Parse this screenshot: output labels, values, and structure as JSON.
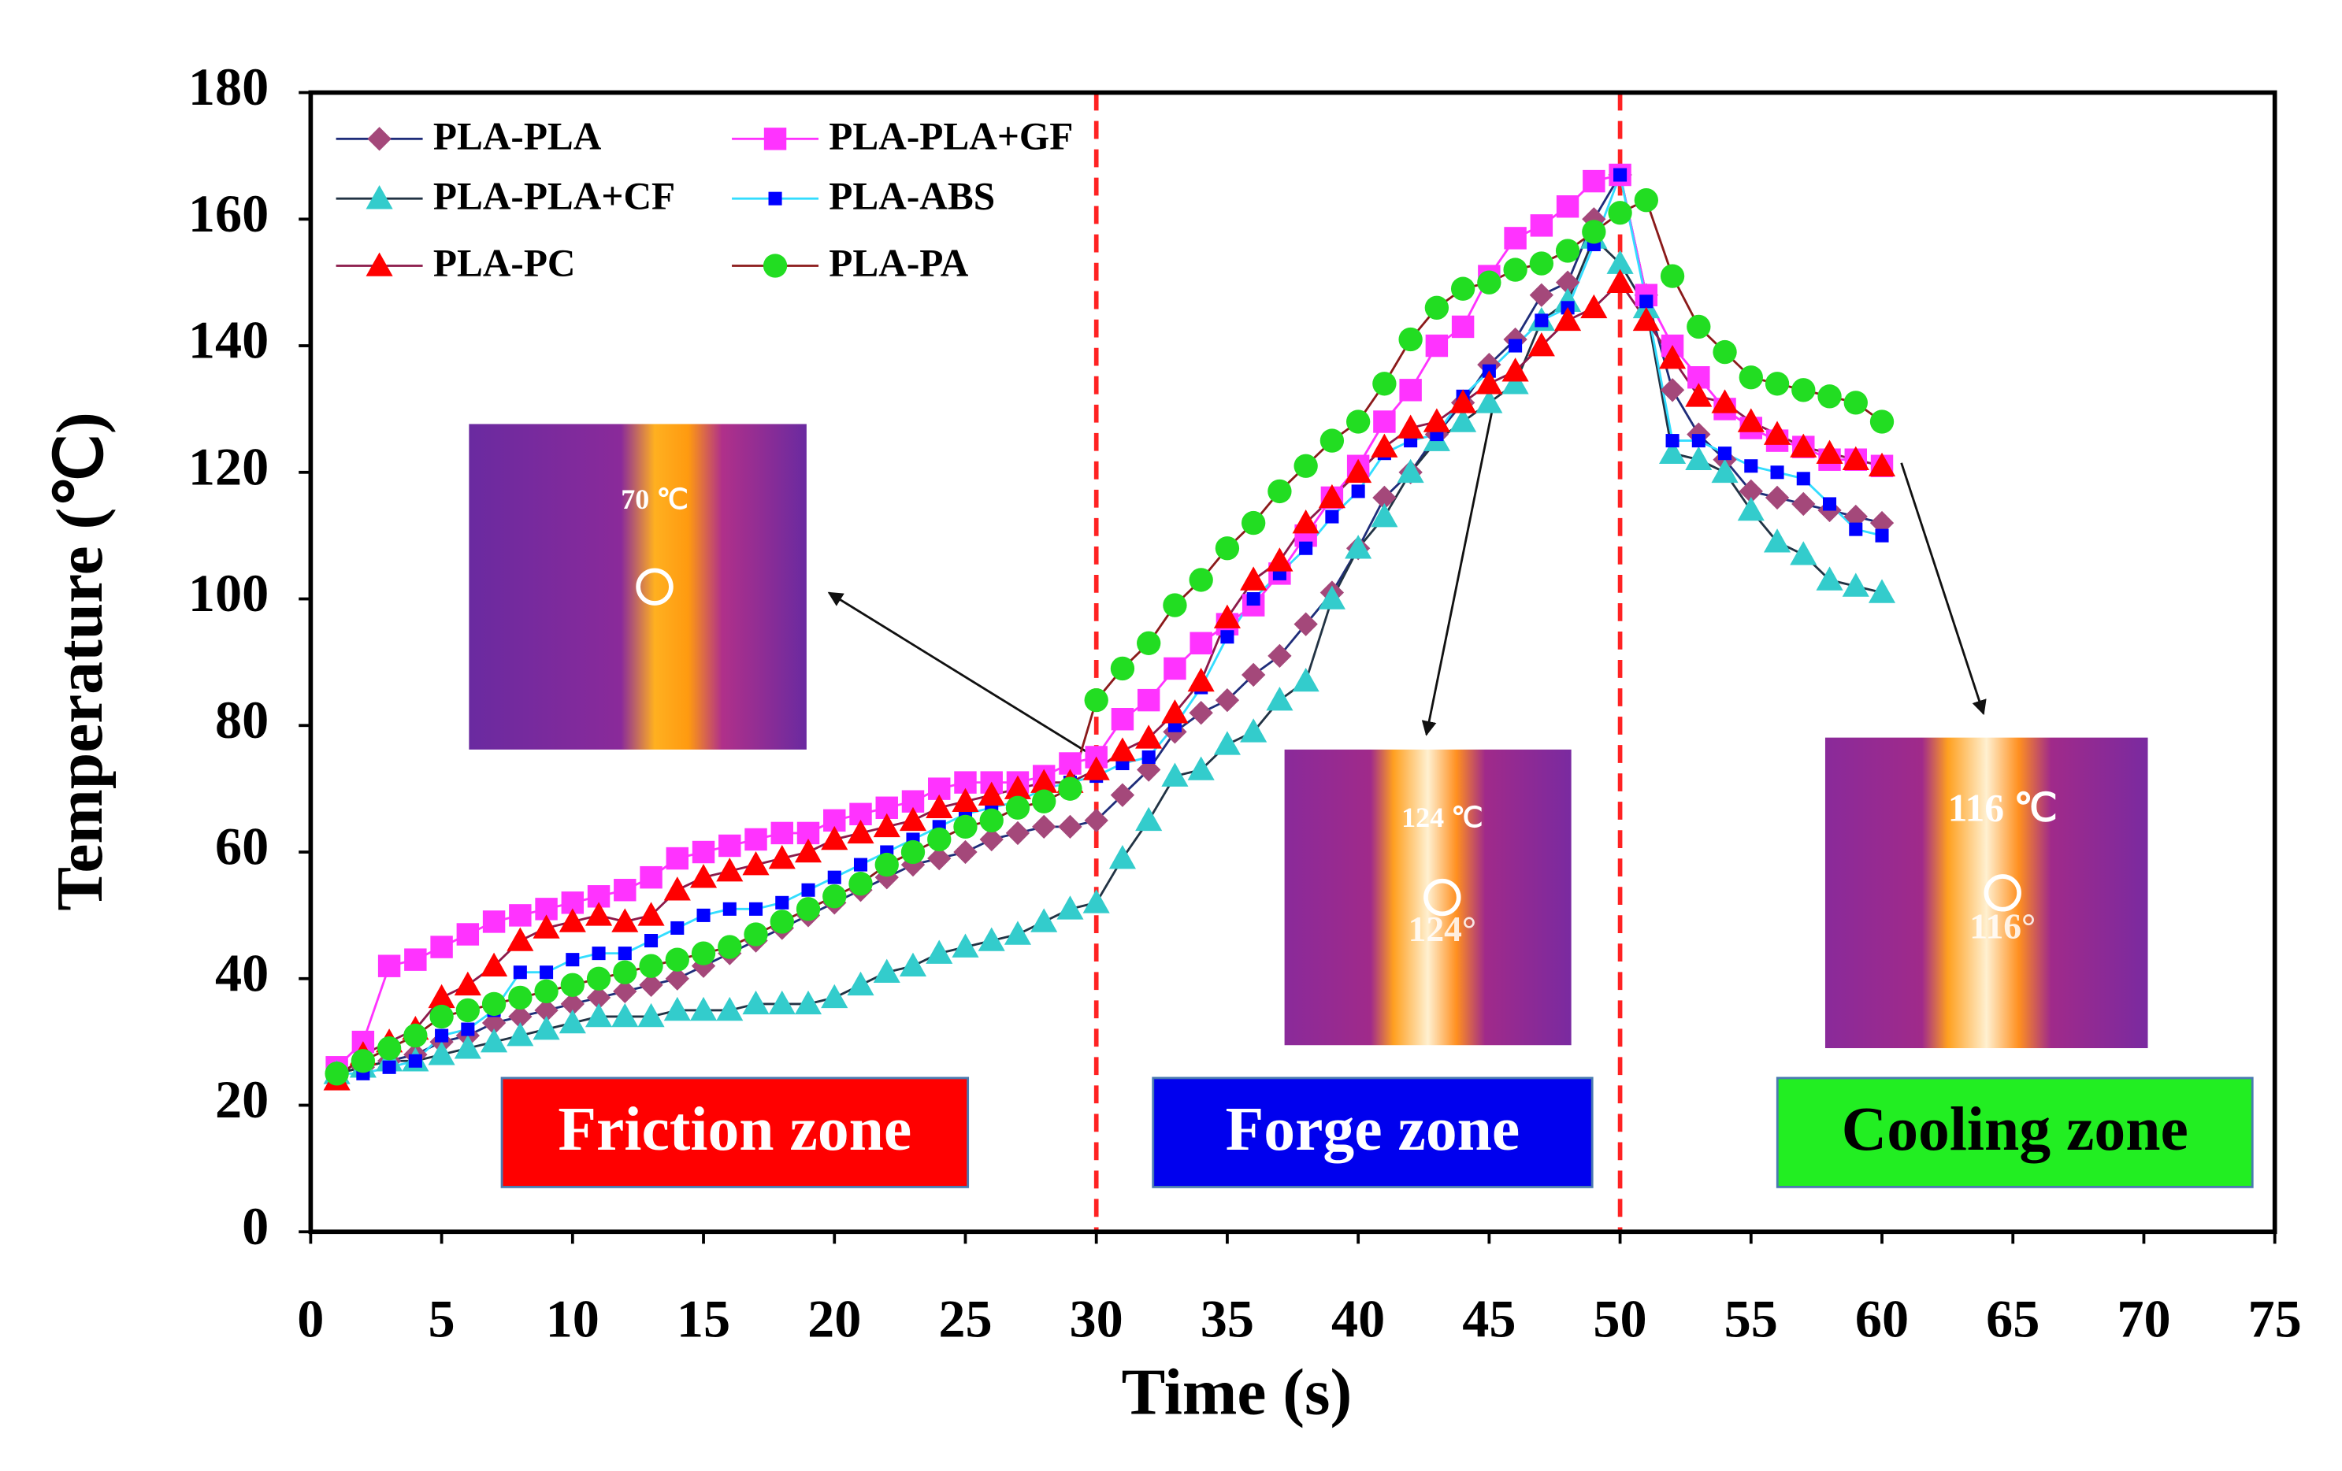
{
  "chart_data": {
    "type": "line",
    "x_label": "Time (s)",
    "y_label": "Temperature (℃)",
    "xlim": [
      0,
      75
    ],
    "xticks": [
      0,
      5,
      10,
      15,
      20,
      25,
      30,
      35,
      40,
      45,
      50,
      55,
      60,
      65,
      70,
      75
    ],
    "ylim": [
      0,
      180
    ],
    "yticks": [
      0,
      20,
      40,
      60,
      80,
      100,
      120,
      140,
      160,
      180
    ],
    "grid": false,
    "legend": "upper left",
    "vlines": [
      30,
      50
    ],
    "vline_color": "#ff2222",
    "x": [
      1,
      2,
      3,
      4,
      5,
      6,
      7,
      8,
      9,
      10,
      11,
      12,
      13,
      14,
      15,
      16,
      17,
      18,
      19,
      20,
      21,
      22,
      23,
      24,
      25,
      26,
      27,
      28,
      29,
      30,
      31,
      32,
      33,
      34,
      35,
      36,
      37,
      38,
      39,
      40,
      41,
      42,
      43,
      44,
      45,
      46,
      47,
      48,
      49,
      50,
      51,
      52,
      53,
      54,
      55,
      56,
      57,
      58,
      59,
      60
    ],
    "series": [
      {
        "name": "PLA-PLA",
        "color": "#a4487a",
        "line_color": "#1f2d7a",
        "marker": "diamond",
        "values": [
          25,
          26,
          27,
          28,
          30,
          31,
          33,
          34,
          35,
          36,
          37,
          38,
          39,
          40,
          42,
          44,
          46,
          48,
          50,
          52,
          54,
          56,
          58,
          59,
          60,
          62,
          63,
          64,
          64,
          65,
          69,
          73,
          79,
          82,
          84,
          88,
          91,
          96,
          101,
          108,
          116,
          120,
          126,
          131,
          137,
          141,
          148,
          150,
          160,
          167,
          148,
          133,
          126,
          122,
          117,
          116,
          115,
          114,
          113,
          112
        ]
      },
      {
        "name": "PLA-PLA+GF",
        "color": "#ff33ff",
        "line_color": "#ff33ff",
        "marker": "square",
        "values": [
          26,
          30,
          42,
          43,
          45,
          47,
          49,
          50,
          51,
          52,
          53,
          54,
          56,
          59,
          60,
          61,
          62,
          63,
          63,
          65,
          66,
          67,
          68,
          70,
          71,
          71,
          71,
          72,
          74,
          75,
          81,
          84,
          89,
          93,
          96,
          99,
          104,
          110,
          116,
          121,
          128,
          133,
          140,
          143,
          151,
          157,
          159,
          162,
          166,
          167,
          148,
          140,
          135,
          130,
          127,
          125,
          124,
          122,
          122,
          121
        ]
      },
      {
        "name": "PLA-PLA+CF",
        "color": "#33cccc",
        "line_color": "#223344",
        "marker": "triangle",
        "values": [
          25,
          26,
          27,
          27,
          28,
          29,
          30,
          31,
          32,
          33,
          34,
          34,
          34,
          35,
          35,
          35,
          36,
          36,
          36,
          37,
          39,
          41,
          42,
          44,
          45,
          46,
          47,
          49,
          51,
          52,
          59,
          65,
          72,
          73,
          77,
          79,
          84,
          87,
          100,
          108,
          113,
          120,
          125,
          128,
          131,
          134,
          144,
          147,
          157,
          153,
          146,
          123,
          122,
          120,
          114,
          109,
          107,
          103,
          102,
          101
        ]
      },
      {
        "name": "PLA-ABS",
        "color": "#0000ff",
        "line_color": "#33ddff",
        "marker": "smallsquare",
        "values": [
          25,
          25,
          26,
          27,
          31,
          32,
          35,
          41,
          41,
          43,
          44,
          44,
          46,
          48,
          50,
          51,
          51,
          52,
          54,
          56,
          58,
          60,
          62,
          64,
          66,
          67,
          68,
          70,
          71,
          72,
          74,
          75,
          80,
          86,
          94,
          100,
          104,
          108,
          113,
          117,
          123,
          125,
          126,
          132,
          136,
          140,
          144,
          146,
          156,
          167,
          147,
          125,
          125,
          123,
          121,
          120,
          119,
          115,
          111,
          110
        ]
      },
      {
        "name": "PLA-PC",
        "color": "#ff0000",
        "line_color": "#8b1a4a",
        "marker": "triangle",
        "values": [
          24,
          28,
          30,
          32,
          37,
          39,
          42,
          46,
          48,
          49,
          50,
          49,
          50,
          54,
          56,
          57,
          58,
          59,
          60,
          62,
          63,
          64,
          65,
          67,
          68,
          69,
          70,
          71,
          71,
          73,
          76,
          78,
          82,
          87,
          97,
          103,
          106,
          112,
          116,
          120,
          124,
          127,
          128,
          131,
          134,
          136,
          140,
          144,
          146,
          150,
          144,
          138,
          132,
          131,
          128,
          126,
          124,
          123,
          122,
          121
        ]
      },
      {
        "name": "PLA-PA",
        "color": "#22dd22",
        "line_color": "#8b1a1a",
        "marker": "circle",
        "values": [
          25,
          27,
          29,
          31,
          34,
          35,
          36,
          37,
          38,
          39,
          40,
          41,
          42,
          43,
          44,
          45,
          47,
          49,
          51,
          53,
          55,
          58,
          60,
          62,
          64,
          65,
          67,
          68,
          70,
          84,
          89,
          93,
          99,
          103,
          108,
          112,
          117,
          121,
          125,
          128,
          134,
          141,
          146,
          149,
          150,
          152,
          153,
          155,
          158,
          161,
          163,
          151,
          143,
          139,
          135,
          134,
          133,
          132,
          131,
          128
        ]
      }
    ],
    "zones": [
      {
        "label": "Friction zone",
        "color": "#ff0000",
        "text_color": "#ffffff"
      },
      {
        "label": "Forge zone",
        "color": "#0000ee",
        "text_color": "#ffffff"
      },
      {
        "label": "Cooling zone",
        "color": "#22ee22",
        "text_color": "#000000"
      }
    ],
    "thermal_images": [
      {
        "label": "70 ℃"
      },
      {
        "label": "124 ℃",
        "reading": "124°"
      },
      {
        "label": "116  ℃",
        "reading": "116°"
      }
    ]
  }
}
